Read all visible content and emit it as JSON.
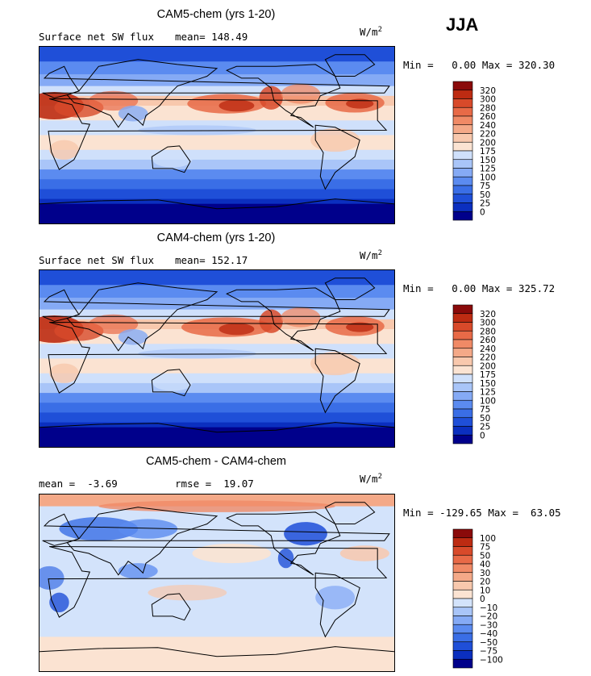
{
  "season": "JJA",
  "units": {
    "base": "W/m",
    "exp": "2"
  },
  "colors": {
    "abs": [
      "#00008b",
      "#0b2fbf",
      "#1f4fd8",
      "#3a6ee6",
      "#5b8bf0",
      "#85aaf5",
      "#a9c5f8",
      "#cfe0fb",
      "#fbe3d2",
      "#f8c8ad",
      "#f4a988",
      "#f08a66",
      "#e86a47",
      "#d84a2a",
      "#bd2b12",
      "#8a0a0a"
    ],
    "diff": [
      "#00008b",
      "#0b2fbf",
      "#1f4fd8",
      "#3a6ee6",
      "#5b8bf0",
      "#85aaf5",
      "#a9c5f8",
      "#d3e3fb",
      "#fbe3d2",
      "#f8c8ad",
      "#f4a988",
      "#f08a66",
      "#e86a47",
      "#d84a2a",
      "#bd2b12",
      "#8a0a0a"
    ]
  },
  "chart_data": [
    {
      "type": "heatmap",
      "title": "CAM5-chem (yrs 1-20)",
      "subtitle": "Surface net SW flux",
      "stat_line": "mean= 148.49",
      "range_line": "Min =   0.00 Max = 320.30",
      "mean": 148.49,
      "min": 0.0,
      "max": 320.3,
      "colorbar_levels": [
        "320",
        "300",
        "280",
        "260",
        "240",
        "220",
        "200",
        "175",
        "150",
        "125",
        "100",
        "75",
        "50",
        "25",
        "0"
      ]
    },
    {
      "type": "heatmap",
      "title": "CAM4-chem (yrs 1-20)",
      "subtitle": "Surface net SW flux",
      "stat_line": "mean= 152.17",
      "range_line": "Min =   0.00 Max = 325.72",
      "mean": 152.17,
      "min": 0.0,
      "max": 325.72,
      "colorbar_levels": [
        "320",
        "300",
        "280",
        "260",
        "240",
        "220",
        "200",
        "175",
        "150",
        "125",
        "100",
        "75",
        "50",
        "25",
        "0"
      ]
    },
    {
      "type": "heatmap",
      "title": "CAM5-chem - CAM4-chem",
      "stat_line": "mean =  -3.69",
      "rmse_line": "rmse =  19.07",
      "range_line": "Min = -129.65 Max =  63.05",
      "mean": -3.69,
      "rmse": 19.07,
      "min": -129.65,
      "max": 63.05,
      "colorbar_levels": [
        "100",
        "75",
        "50",
        "40",
        "30",
        "20",
        "10",
        "0",
        "−10",
        "−20",
        "−30",
        "−40",
        "−50",
        "−75",
        "−100"
      ]
    }
  ]
}
